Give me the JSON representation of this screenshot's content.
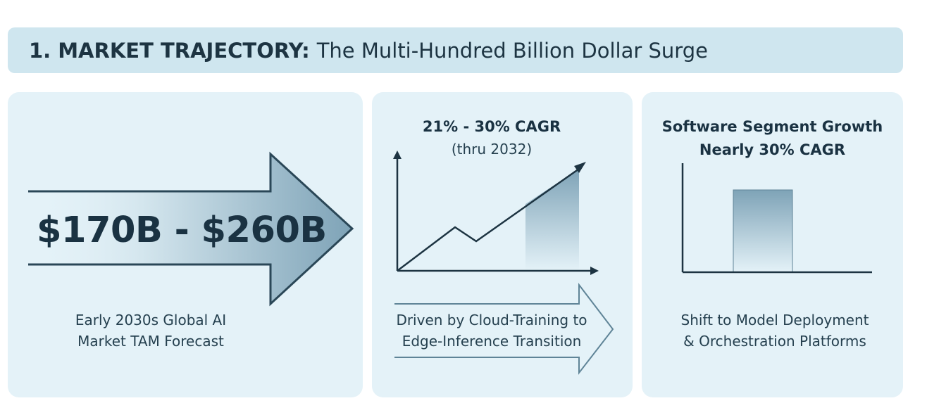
{
  "header": {
    "number": "1.",
    "title_bold": "MARKET TRAJECTORY:",
    "title_rest": "The Multi-Hundred Billion Dollar Surge"
  },
  "panel_tam": {
    "value": "$170B - $260B",
    "caption_line1": "Early 2030s Global AI",
    "caption_line2": "Market TAM Forecast",
    "icon": "big-right-arrow-icon"
  },
  "panel_cagr": {
    "title": "21% - 30% CAGR",
    "subtitle": "(thru 2032)",
    "caption_line1": "Driven by Cloud-Training to",
    "caption_line2": "Edge-Inference Transition",
    "icon": "rising-line-chart-icon"
  },
  "panel_software": {
    "title_line1": "Software Segment Growth",
    "title_line2": "Nearly 30% CAGR",
    "caption_line1": "Shift to Model Deployment",
    "caption_line2": "& Orchestration Platforms",
    "icon": "single-bar-chart-icon"
  },
  "colors": {
    "header_bg": "#cfe6ef",
    "panel_bg": "#e4f2f8",
    "dark_text": "#1a3242",
    "arrow_gradient_end": "#7ea3b7"
  }
}
